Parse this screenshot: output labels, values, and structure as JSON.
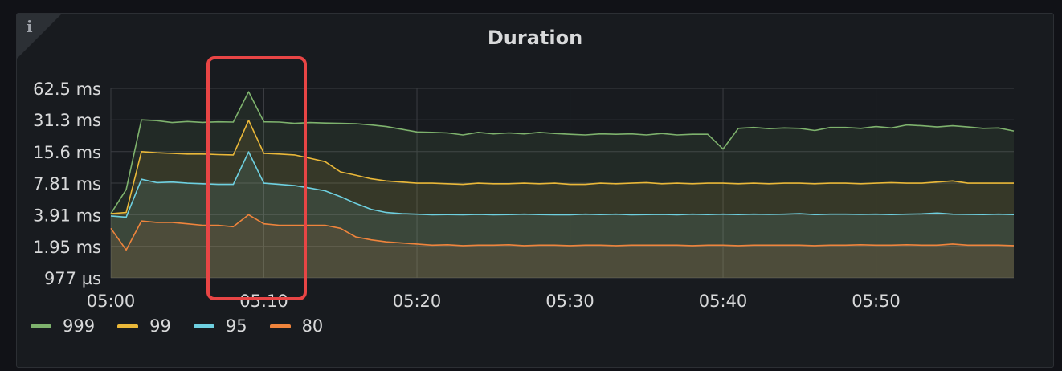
{
  "panel": {
    "title": "Duration",
    "info_label": "i"
  },
  "colors": {
    "series_999": "#7eb26d",
    "series_99": "#eab839",
    "series_95": "#6ed0e0",
    "series_80": "#ef843c",
    "highlight": "#e84545"
  },
  "chart_data": {
    "type": "area",
    "title": "Duration",
    "xlabel": "",
    "ylabel": "",
    "y_scale": "log2",
    "ylim_ms": [
      0.977,
      62.5
    ],
    "yticks": [
      {
        "value": 62.5,
        "label": "62.5 ms"
      },
      {
        "value": 31.3,
        "label": "31.3 ms"
      },
      {
        "value": 15.6,
        "label": "15.6 ms"
      },
      {
        "value": 7.81,
        "label": "7.81 ms"
      },
      {
        "value": 3.91,
        "label": "3.91 ms"
      },
      {
        "value": 1.95,
        "label": "1.95 ms"
      },
      {
        "value": 0.977,
        "label": "977 µs"
      }
    ],
    "xticks": [
      "05:00",
      "05:10",
      "05:20",
      "05:30",
      "05:40",
      "05:50"
    ],
    "x": [
      "05:00",
      "05:01",
      "05:02",
      "05:03",
      "05:04",
      "05:05",
      "05:06",
      "05:07",
      "05:08",
      "05:09",
      "05:10",
      "05:11",
      "05:12",
      "05:13",
      "05:14",
      "05:15",
      "05:16",
      "05:17",
      "05:18",
      "05:19",
      "05:20",
      "05:21",
      "05:22",
      "05:23",
      "05:24",
      "05:25",
      "05:26",
      "05:27",
      "05:28",
      "05:29",
      "05:30",
      "05:31",
      "05:32",
      "05:33",
      "05:34",
      "05:35",
      "05:36",
      "05:37",
      "05:38",
      "05:39",
      "05:40",
      "05:41",
      "05:42",
      "05:43",
      "05:44",
      "05:45",
      "05:46",
      "05:47",
      "05:48",
      "05:49",
      "05:50",
      "05:51",
      "05:52",
      "05:53",
      "05:54",
      "05:55",
      "05:56",
      "05:57",
      "05:58",
      "05:59"
    ],
    "grid": true,
    "legend_position": "bottom-left",
    "series": [
      {
        "name": "999",
        "color": "#7eb26d",
        "values": [
          4.0,
          6.8,
          31.3,
          30.8,
          29.5,
          30.2,
          29.6,
          30.0,
          29.8,
          58.0,
          30.0,
          29.8,
          29.0,
          29.5,
          29.2,
          29.0,
          28.8,
          28.0,
          27.0,
          25.5,
          24.0,
          23.8,
          23.5,
          22.5,
          23.8,
          23.0,
          23.5,
          23.0,
          23.8,
          23.2,
          22.8,
          22.5,
          23.0,
          22.8,
          23.0,
          22.5,
          23.2,
          22.5,
          22.8,
          22.8,
          16.5,
          26.0,
          26.5,
          25.8,
          26.2,
          26.0,
          24.8,
          26.5,
          26.5,
          26.0,
          27.0,
          26.2,
          28.0,
          27.5,
          26.8,
          27.5,
          26.8,
          26.0,
          26.2,
          24.5
        ]
      },
      {
        "name": "99",
        "color": "#eab839",
        "values": [
          4.0,
          4.1,
          15.6,
          15.2,
          15.0,
          14.8,
          14.8,
          14.6,
          14.5,
          31.0,
          15.0,
          14.8,
          14.5,
          13.5,
          12.5,
          10.0,
          9.3,
          8.6,
          8.2,
          8.0,
          7.8,
          7.8,
          7.7,
          7.6,
          7.8,
          7.7,
          7.7,
          7.8,
          7.7,
          7.8,
          7.6,
          7.6,
          7.8,
          7.7,
          7.8,
          7.9,
          7.7,
          7.8,
          7.7,
          7.8,
          7.8,
          7.7,
          7.8,
          7.7,
          7.8,
          7.8,
          7.7,
          7.8,
          7.8,
          7.7,
          7.8,
          7.9,
          7.8,
          7.8,
          8.0,
          8.2,
          7.8,
          7.8,
          7.8,
          7.8
        ]
      },
      {
        "name": "95",
        "color": "#6ed0e0",
        "values": [
          3.8,
          3.7,
          8.5,
          7.9,
          8.0,
          7.8,
          7.7,
          7.6,
          7.6,
          15.5,
          7.8,
          7.6,
          7.4,
          7.0,
          6.6,
          5.8,
          5.0,
          4.4,
          4.1,
          4.0,
          3.95,
          3.9,
          3.92,
          3.9,
          3.94,
          3.9,
          3.92,
          3.95,
          3.92,
          3.9,
          3.9,
          3.95,
          3.92,
          3.95,
          3.9,
          3.92,
          3.94,
          3.9,
          3.95,
          3.92,
          3.95,
          3.92,
          3.95,
          3.93,
          3.95,
          4.0,
          3.92,
          3.95,
          3.95,
          3.94,
          3.95,
          3.92,
          3.95,
          3.98,
          4.05,
          3.95,
          3.94,
          3.92,
          3.95,
          3.92
        ]
      },
      {
        "name": "80",
        "color": "#ef843c",
        "values": [
          2.9,
          1.8,
          3.4,
          3.3,
          3.3,
          3.2,
          3.1,
          3.1,
          3.0,
          3.9,
          3.2,
          3.1,
          3.1,
          3.1,
          3.1,
          2.9,
          2.4,
          2.25,
          2.15,
          2.1,
          2.05,
          2.0,
          2.02,
          1.98,
          2.0,
          2.0,
          2.02,
          1.98,
          2.0,
          2.0,
          1.98,
          2.0,
          2.0,
          1.98,
          2.0,
          2.0,
          2.0,
          2.0,
          1.98,
          2.0,
          2.0,
          1.98,
          2.0,
          2.0,
          2.0,
          2.0,
          1.98,
          2.0,
          2.0,
          2.02,
          2.0,
          2.0,
          2.02,
          2.0,
          2.0,
          2.05,
          2.0,
          2.0,
          2.0,
          1.98
        ]
      }
    ]
  }
}
